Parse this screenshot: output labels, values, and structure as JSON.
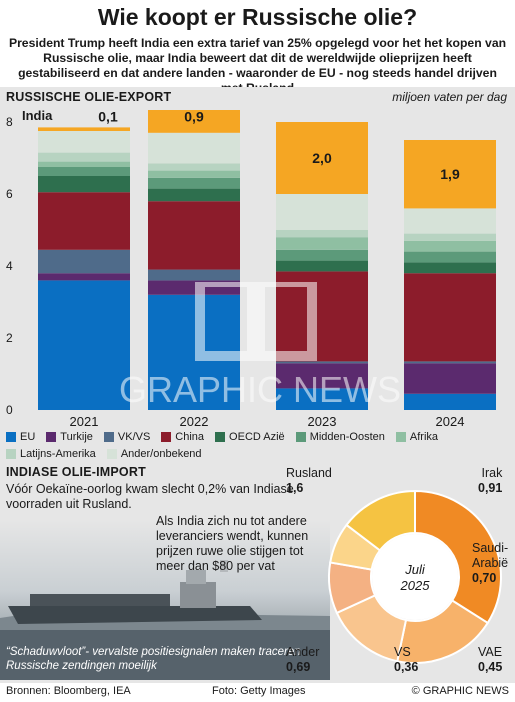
{
  "title": "Wie koopt er Russische olie?",
  "subtitle": "President Trump heeft India een extra tarief van 25% opgelegd voor het het kopen van Russische olie, maar India beweert dat dit de wereldwijde olieprijzen heeft gestabiliseerd en dat andere landen - waaronder de EU - nog steeds handel drijven met Rusland",
  "export_section": {
    "title": "RUSSISCHE OLIE-EXPORT",
    "unit": "miljoen vaten per dag",
    "india_label": "India"
  },
  "colors": {
    "EU": "#0a6fc2",
    "Turkije": "#5b2a6e",
    "VK/VS": "#4f6b8a",
    "China": "#8c1c2b",
    "OECD Azië": "#2e6f4e",
    "Midden-Oosten": "#5c9a7a",
    "Afrika": "#8fbfa2",
    "Latijns-Amerika": "#b7d3c1",
    "Ander/onbekend": "#d6e2d8",
    "India": "#f5a623"
  },
  "chart_data": [
    {
      "type": "bar",
      "stacked": true,
      "categories": [
        "2021",
        "2022",
        "2023",
        "2024"
      ],
      "ylim": [
        0,
        8
      ],
      "yticks": [
        "0",
        "2",
        "4",
        "6",
        "8"
      ],
      "series": [
        {
          "name": "EU",
          "values": [
            3.6,
            3.2,
            0.6,
            0.45
          ]
        },
        {
          "name": "Turkije",
          "values": [
            0.2,
            0.4,
            0.7,
            0.85
          ]
        },
        {
          "name": "VK/VS",
          "values": [
            0.65,
            0.3,
            0.05,
            0.05
          ]
        },
        {
          "name": "China",
          "values": [
            1.6,
            1.9,
            2.5,
            2.45
          ]
        },
        {
          "name": "OECD Azië",
          "values": [
            0.45,
            0.35,
            0.3,
            0.3
          ]
        },
        {
          "name": "Midden-Oosten",
          "values": [
            0.25,
            0.3,
            0.3,
            0.3
          ]
        },
        {
          "name": "Afrika",
          "values": [
            0.15,
            0.2,
            0.35,
            0.3
          ]
        },
        {
          "name": "Latijns-Amerika",
          "values": [
            0.25,
            0.2,
            0.2,
            0.2
          ]
        },
        {
          "name": "Ander/onbekend",
          "values": [
            0.6,
            0.85,
            1.0,
            0.7
          ]
        },
        {
          "name": "India",
          "values": [
            0.1,
            0.9,
            2.0,
            1.9
          ]
        }
      ],
      "data_labels": {
        "India": [
          "0,1",
          "0,9",
          "2,0",
          "1,9"
        ]
      }
    },
    {
      "type": "pie",
      "donut": true,
      "center_label": "Juli 2025",
      "slices": [
        {
          "name": "Rusland",
          "value": 1.6,
          "label": "1,6",
          "color": "#f08a24"
        },
        {
          "name": "Irak",
          "value": 0.91,
          "label": "0,91",
          "color": "#f7b26a"
        },
        {
          "name": "Saudi-Arabië",
          "value": 0.7,
          "label": "0,70",
          "color": "#f9c58e"
        },
        {
          "name": "VAE",
          "value": 0.45,
          "label": "0,45",
          "color": "#f4b183"
        },
        {
          "name": "VS",
          "value": 0.36,
          "label": "0,36",
          "color": "#fbd58a"
        },
        {
          "name": "Ander",
          "value": 0.69,
          "label": "0,69",
          "color": "#f5c342"
        }
      ]
    }
  ],
  "legend": {
    "row1": [
      "EU",
      "Turkije",
      "VK/VS",
      "China",
      "OECD Azië",
      "Midden-Oosten",
      "Afrika"
    ],
    "row2": [
      "Latijns-Amerika",
      "Ander/onbekend"
    ]
  },
  "import_section": {
    "title": "INDIASE OLIE-IMPORT",
    "intro": "Vóór Oekaïne-oorlog kwam slecht 0,2% van Indiase voorraden uit Rusland.",
    "note": "Als India zich nu tot andere leveranciers wendt, kunnen prijzen ruwe olie stijgen tot meer dan $80 per vat",
    "caption": "“Schaduwvloot”- vervalste positiesignalen maken traceren Russische zendingen moeilijk"
  },
  "footer": {
    "sources": "Bronnen: Bloomberg, IEA",
    "photo": "Foto: Getty Images",
    "copyright": "© GRAPHIC NEWS"
  },
  "watermark": "GRAPHIC NEWS"
}
